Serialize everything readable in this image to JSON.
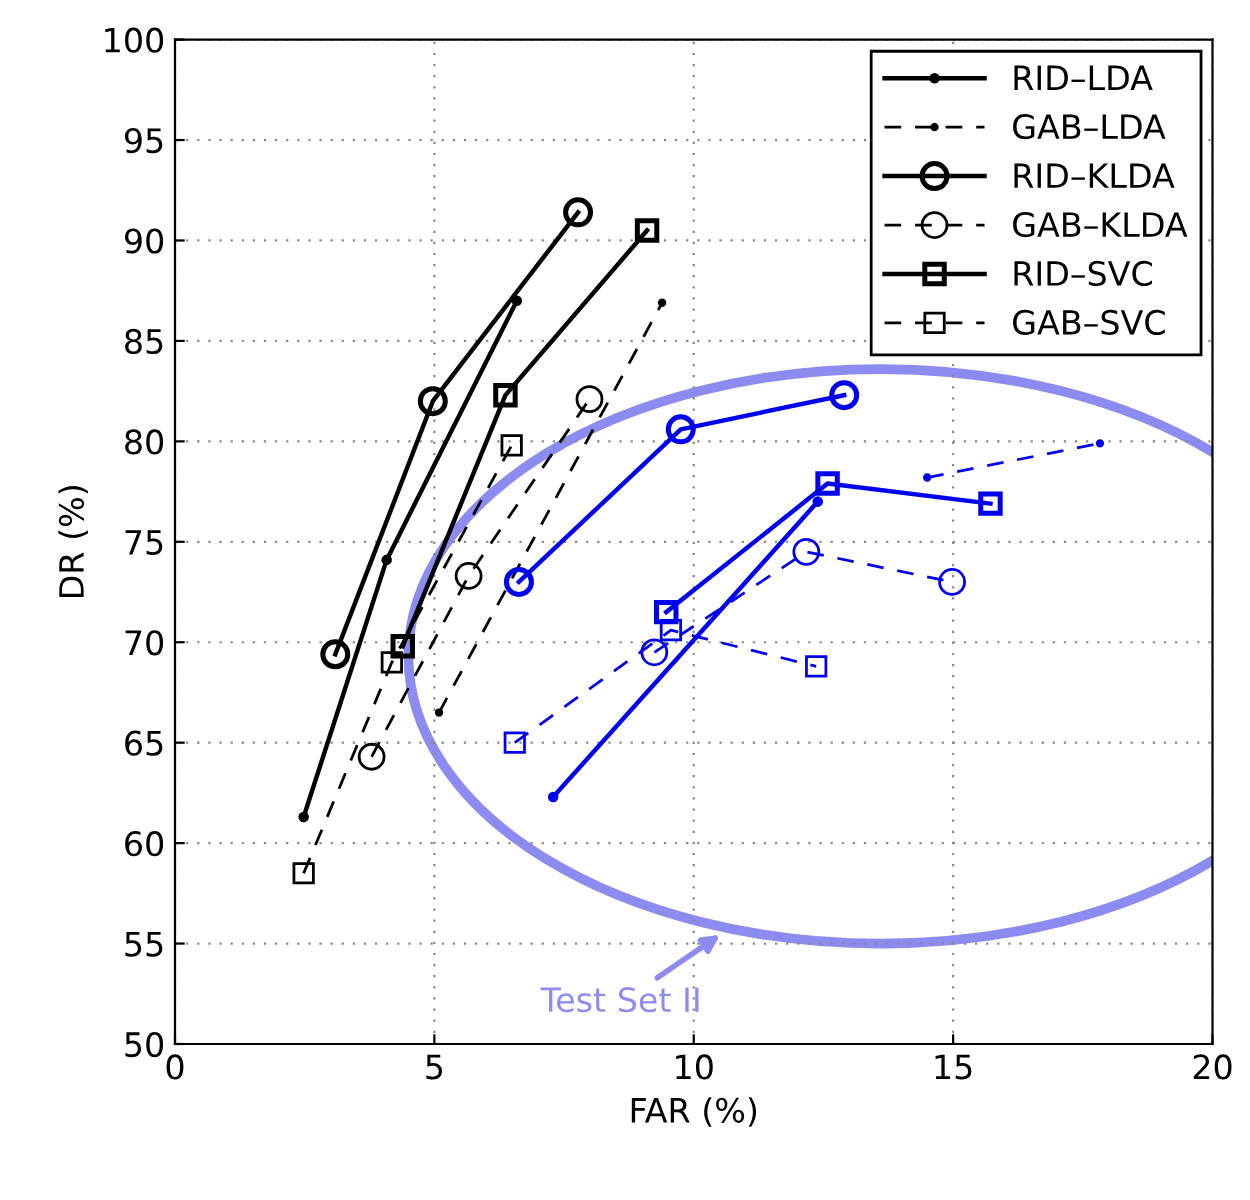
{
  "chart_data": {
    "type": "line",
    "xlabel": "FAR (%)",
    "ylabel": "DR (%)",
    "xlim": [
      0,
      20
    ],
    "ylim": [
      50,
      100
    ],
    "xticks": [
      0,
      5,
      10,
      15,
      20
    ],
    "yticks": [
      50,
      55,
      60,
      65,
      70,
      75,
      80,
      85,
      90,
      95,
      100
    ],
    "grid": true,
    "legend": "top right",
    "annotations": [
      "Test Set II"
    ],
    "series": [
      {
        "name": "RID–LDA",
        "color": "#000000",
        "marker": "dot",
        "line_style": "solid",
        "x": [
          2.48,
          4.08,
          6.59
        ],
        "values": [
          61.3,
          74.1,
          87.0
        ]
      },
      {
        "name": "GAB–LDA",
        "color": "#000000",
        "marker": "dot",
        "line_style": "dashed",
        "x": [
          5.09,
          9.39
        ],
        "values": [
          66.5,
          86.9
        ]
      },
      {
        "name": "RID–KLDA",
        "color": "#000000",
        "marker": "circle",
        "line_style": "solid",
        "x": [
          3.09,
          4.97,
          7.77
        ],
        "values": [
          69.4,
          82.0,
          91.4
        ]
      },
      {
        "name": "GAB–KLDA",
        "color": "#000000",
        "marker": "circle",
        "line_style": "dashed",
        "x": [
          3.79,
          5.66,
          7.99
        ],
        "values": [
          64.3,
          73.3,
          82.1
        ]
      },
      {
        "name": "RID–SVC",
        "color": "#000000",
        "marker": "square",
        "line_style": "solid",
        "x": [
          4.39,
          6.37,
          9.1
        ],
        "values": [
          69.8,
          82.3,
          90.5
        ]
      },
      {
        "name": "GAB–SVC",
        "color": "#000000",
        "marker": "square",
        "line_style": "dashed",
        "x": [
          2.48,
          4.18,
          6.49
        ],
        "values": [
          58.5,
          69.0,
          79.8
        ]
      },
      {
        "color": "#0000ee",
        "marker": "dot",
        "line_style": "solid",
        "x": [
          7.29,
          12.39
        ],
        "values": [
          62.3,
          77.0
        ]
      },
      {
        "color": "#0000ee",
        "marker": "dot",
        "line_style": "dashed",
        "x": [
          14.5,
          17.83
        ],
        "values": [
          78.2,
          79.9
        ]
      },
      {
        "color": "#0000ee",
        "marker": "circle",
        "line_style": "solid",
        "x": [
          6.63,
          9.75,
          12.9
        ],
        "values": [
          73.0,
          80.6,
          82.3
        ]
      },
      {
        "color": "#0000ee",
        "marker": "circle",
        "line_style": "dashed",
        "x": [
          9.24,
          12.17,
          14.98
        ],
        "values": [
          69.5,
          74.5,
          73.0
        ]
      },
      {
        "color": "#0000ee",
        "marker": "square",
        "line_style": "solid",
        "x": [
          9.47,
          12.58,
          15.72
        ],
        "values": [
          71.5,
          77.9,
          76.9
        ]
      },
      {
        "color": "#0000ee",
        "marker": "square",
        "line_style": "dashed",
        "x": [
          6.55,
          9.56,
          12.36
        ],
        "values": [
          65.0,
          70.6,
          68.8
        ]
      }
    ]
  }
}
